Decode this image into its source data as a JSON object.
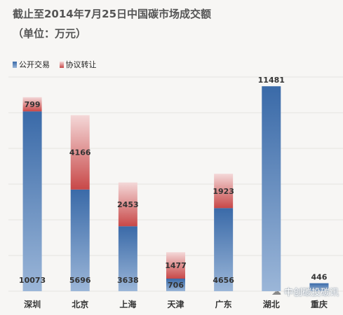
{
  "header": {
    "title_line1": "截止至2014年7月25日中国碳市场成交额",
    "title_line2": "（单位：万元）"
  },
  "legend": {
    "public_label": "公开交易",
    "agreement_label": "协议转让"
  },
  "watermark": {
    "text": "中创碳投碳讯",
    "icon": "wechat-icon"
  },
  "colors": {
    "public_top": "#3a6aa8",
    "public_bottom": "#9bb6d8",
    "agreement_top": "#f4d8d8",
    "agreement_bottom": "#c84848",
    "background": "#f7f6f4"
  },
  "chart_data": {
    "type": "bar",
    "stacked": true,
    "categories": [
      "深圳",
      "北京",
      "上海",
      "天津",
      "广东",
      "湖北",
      "重庆"
    ],
    "series": [
      {
        "name": "公开交易",
        "values": [
          10073,
          5696,
          3638,
          706,
          4656,
          11481,
          446
        ]
      },
      {
        "name": "协议转让",
        "values": [
          799,
          4166,
          2453,
          1477,
          1923,
          0,
          0
        ]
      }
    ],
    "ylim": [
      0,
      12000
    ],
    "grid": true,
    "legend_position": "top-left"
  }
}
